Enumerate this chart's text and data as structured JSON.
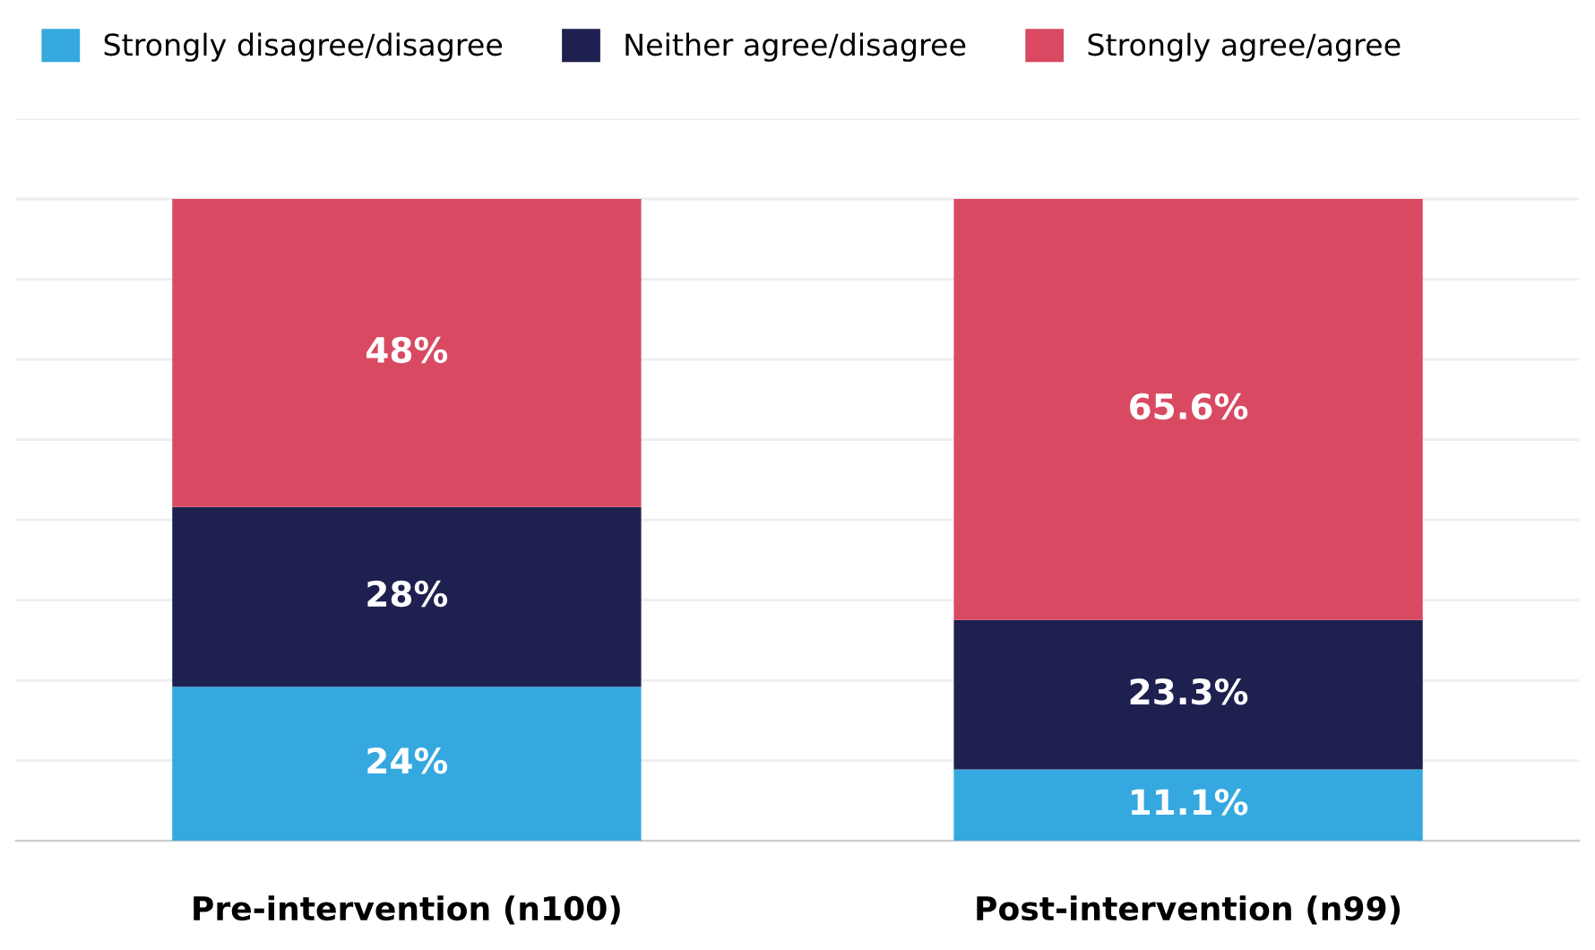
{
  "chart_data": {
    "type": "bar",
    "stacked": true,
    "categories": [
      "Pre-intervention (n100)",
      "Post-intervention (n99)"
    ],
    "series": [
      {
        "name": "Strongly disagree/disagree",
        "color": "#35a8e0",
        "values": [
          24,
          11.1
        ],
        "value_labels": [
          "24%",
          "11.1%"
        ]
      },
      {
        "name": "Neither agree/disagree",
        "color": "#1e2050",
        "values": [
          28,
          23.3
        ],
        "value_labels": [
          "28%",
          "23.3%"
        ]
      },
      {
        "name": "Strongly agree/agree",
        "color": "#d94a62",
        "values": [
          48,
          65.6
        ],
        "value_labels": [
          "48%",
          "65.6%"
        ]
      }
    ],
    "ylim": [
      0,
      112.5
    ],
    "yticks": [
      {
        "value": 0,
        "label": null
      },
      {
        "value": 12.5,
        "label": null
      },
      {
        "value": 25,
        "label": null
      },
      {
        "value": 37.5,
        "label": null
      },
      {
        "value": 50,
        "label": null
      },
      {
        "value": 62.5,
        "label": null
      },
      {
        "value": 75,
        "label": null
      },
      {
        "value": 87.5,
        "label": null
      },
      {
        "value": 100,
        "label": null
      },
      {
        "value": 112.5,
        "label": null
      }
    ],
    "grid": "y",
    "legend": "top left",
    "tick_labels": "x"
  }
}
